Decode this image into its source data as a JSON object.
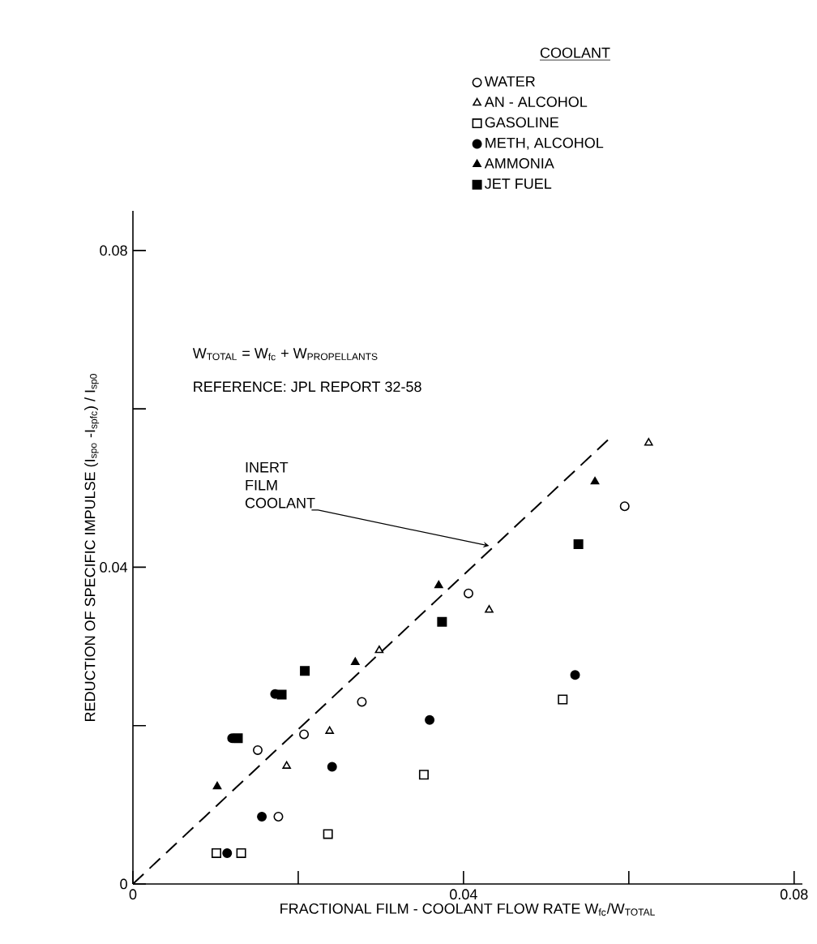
{
  "chart_data": {
    "type": "scatter",
    "xlabel": "FRACTIONAL FILM - COOLANT FLOW RATE W$_{fc}$/W$_{TOTAL}$",
    "ylabel": "REDUCTION OF SPECIFIC IMPULSE (I$_{spo}$ -I$_{spfc}$) / I$_{sp0}$",
    "legend_title": "COOLANT",
    "legend": "top right",
    "xlim": [
      0,
      0.081
    ],
    "ylim": [
      0,
      0.085
    ],
    "xticks": [
      0,
      {
        "value": 0.02,
        "label": null
      },
      0.04,
      {
        "value": 0.06,
        "label": null
      },
      0.08
    ],
    "yticks": [
      0,
      {
        "value": 0.02,
        "label": null
      },
      0.04,
      {
        "value": 0.06,
        "label": null
      },
      0.08
    ],
    "annotations": [
      "\\text{W}_{\\text{TOTAL}}\\text{ = }\\text{W}_{\\text{fc}}\\text{ + }\\text{W}_{\\text{PROPELLANTS}}",
      "REFERENCE: JPL REPORT 32-58",
      {
        "text": "INERT FILM COOLANT",
        "x": 0.0431,
        "y": 0.0427
      }
    ],
    "series": [
      {
        "name": "WATER",
        "color": "#000000",
        "marker": "circle-open",
        "x": [
          0.0151,
          0.0207,
          0.0277,
          0.0406,
          0.0595,
          0.0176
        ],
        "values": [
          0.0169,
          0.0189,
          0.023,
          0.0367,
          0.0477,
          0.0085
        ]
      },
      {
        "name": "AN - ALCOHOL",
        "color": "#000000",
        "marker": "triangle-open",
        "x": [
          0.0186,
          0.0238,
          0.0298,
          0.0431,
          0.0624
        ],
        "values": [
          0.0149,
          0.0193,
          0.0295,
          0.0346,
          0.0557
        ]
      },
      {
        "name": "GASOLINE",
        "color": "#000000",
        "marker": "square-open",
        "x": [
          0.0101,
          0.0131,
          0.0236,
          0.0352,
          0.052
        ],
        "values": [
          0.0039,
          0.0039,
          0.0063,
          0.0138,
          0.0233
        ]
      },
      {
        "name": "METH, ALCOHOL",
        "color": "#000000",
        "marker": "circle",
        "x": [
          0.0114,
          0.0156,
          0.012,
          0.0172,
          0.0241,
          0.0359,
          0.0535
        ],
        "values": [
          0.0039,
          0.0085,
          0.0184,
          0.024,
          0.0148,
          0.0207,
          0.0264
        ]
      },
      {
        "name": "AMMONIA",
        "color": "#000000",
        "marker": "triangle",
        "x": [
          0.0102,
          0.0269,
          0.037,
          0.0559
        ],
        "values": [
          0.0123,
          0.028,
          0.0377,
          0.0508
        ]
      },
      {
        "name": "JET FUEL",
        "color": "#000000",
        "marker": "square",
        "x": [
          0.0127,
          0.018,
          0.0208,
          0.0374,
          0.0539
        ],
        "values": [
          0.0184,
          0.0239,
          0.0269,
          0.0331,
          0.0429
        ]
      },
      {
        "type": "line",
        "color": "#000000",
        "marker": "none",
        "line_style": "dashed",
        "x": [
          0,
          0.0576
        ],
        "values": [
          0,
          0.0562
        ]
      }
    ]
  }
}
